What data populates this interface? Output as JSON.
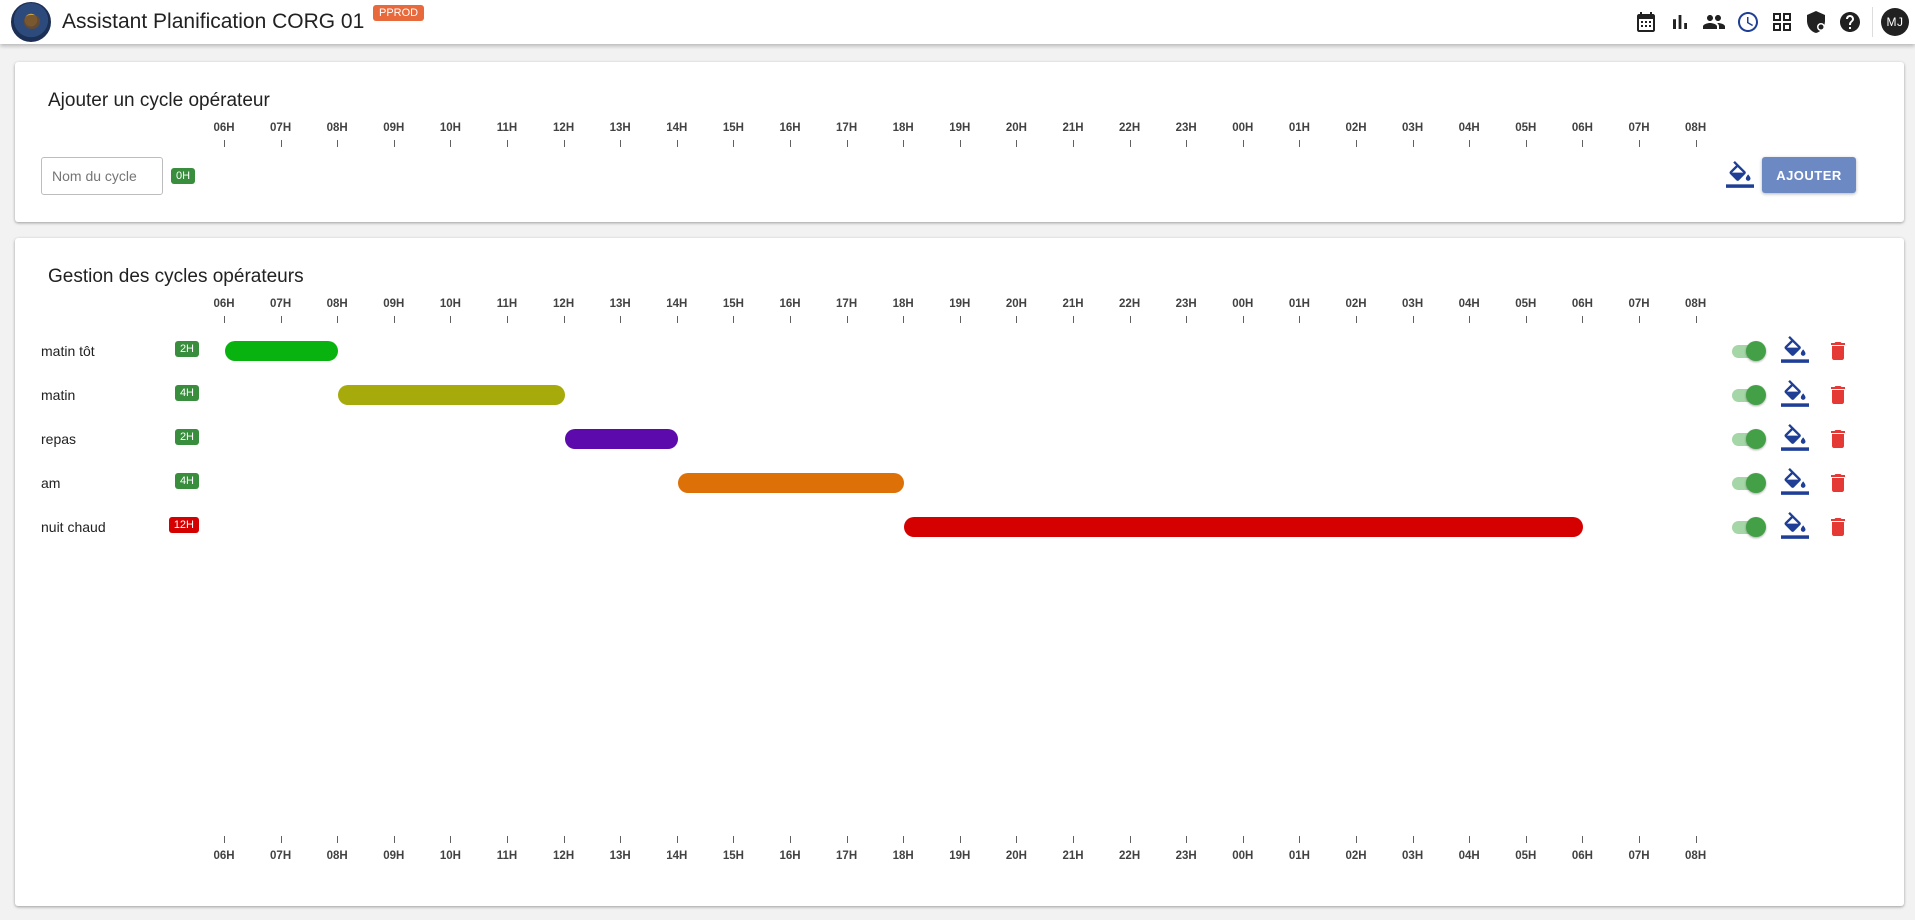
{
  "header": {
    "title": "Assistant Planification CORG 01",
    "env_badge": "PPROD",
    "avatar_initials": "MJ",
    "icons": [
      "calendar-icon",
      "bar-chart-icon",
      "people-icon",
      "clock-icon",
      "grid-icon",
      "shield-icon",
      "help-icon"
    ]
  },
  "hours": [
    "06H",
    "07H",
    "08H",
    "09H",
    "10H",
    "11H",
    "12H",
    "13H",
    "14H",
    "15H",
    "16H",
    "17H",
    "18H",
    "19H",
    "20H",
    "21H",
    "22H",
    "23H",
    "00H",
    "01H",
    "02H",
    "03H",
    "04H",
    "05H",
    "06H",
    "07H",
    "08H"
  ],
  "add_cycle": {
    "title": "Ajouter un cycle opérateur",
    "name_placeholder": "Nom du cycle",
    "name_value": "",
    "duration": "0H",
    "duration_color": "#388e3c",
    "paint_color": "#1e3f95",
    "add_label": "AJOUTER"
  },
  "manage": {
    "title": "Gestion des cycles opérateurs",
    "cycles": [
      {
        "name": "matin tôt",
        "duration": "2H",
        "badge_color": "#388e3c",
        "start_hour": 6,
        "end_hour": 8,
        "color": "#09b30f",
        "enabled": true
      },
      {
        "name": "matin",
        "duration": "4H",
        "badge_color": "#388e3c",
        "start_hour": 8,
        "end_hour": 12,
        "color": "#a6aa0a",
        "enabled": true
      },
      {
        "name": "repas",
        "duration": "2H",
        "badge_color": "#388e3c",
        "start_hour": 12,
        "end_hour": 14,
        "color": "#5c0aab",
        "enabled": true
      },
      {
        "name": "am",
        "duration": "4H",
        "badge_color": "#388e3c",
        "start_hour": 14,
        "end_hour": 18,
        "color": "#dd7006",
        "enabled": true
      },
      {
        "name": "nuit chaud",
        "duration": "12H",
        "badge_color": "#d50000",
        "start_hour": 18,
        "end_hour": 30,
        "color": "#d50000",
        "enabled": true
      }
    ]
  },
  "colors": {
    "toggle_on": "#43a047",
    "paint_icon": "#1e3f95",
    "delete_icon": "#e53935",
    "add_button": "#6d89c4"
  }
}
